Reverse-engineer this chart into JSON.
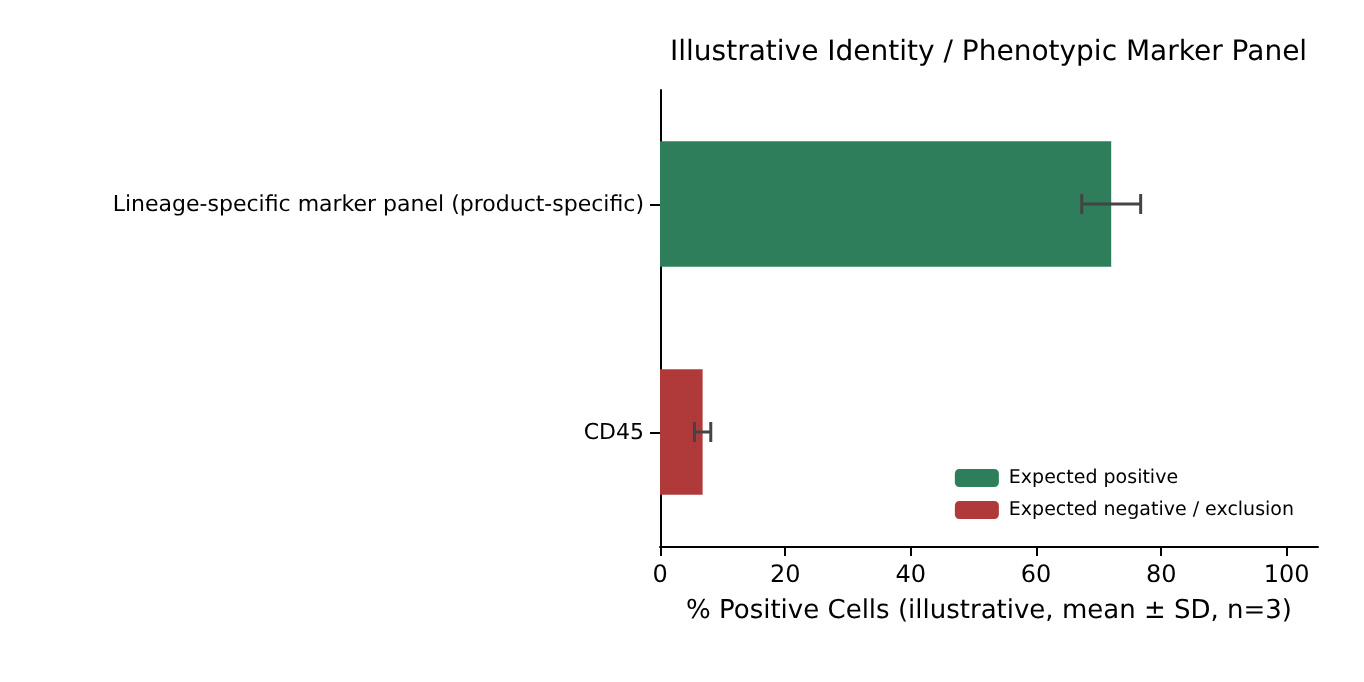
{
  "chart_data": {
    "type": "bar",
    "orientation": "horizontal",
    "stacked": true,
    "title": "Illustrative Identity / Phenotypic Marker Panel",
    "xlabel": "% Positive Cells (illustrative, mean ± SD, n=3)",
    "categories": [
      "Lineage-specific marker panel (product-specific)",
      "CD45"
    ],
    "series": [
      {
        "name": "Expected positive",
        "color": "#2e7d5b",
        "values": [
          72,
          null
        ],
        "errors": [
          4.7,
          null
        ]
      },
      {
        "name": "Expected negative / exclusion",
        "color": "#b03a3a",
        "values": [
          null,
          6.8
        ],
        "errors": [
          null,
          1.3
        ]
      }
    ],
    "xlim": [
      0,
      105
    ],
    "xticks": [
      0,
      20,
      40,
      60,
      80,
      100
    ],
    "grid": false,
    "legend": "bottom right"
  }
}
